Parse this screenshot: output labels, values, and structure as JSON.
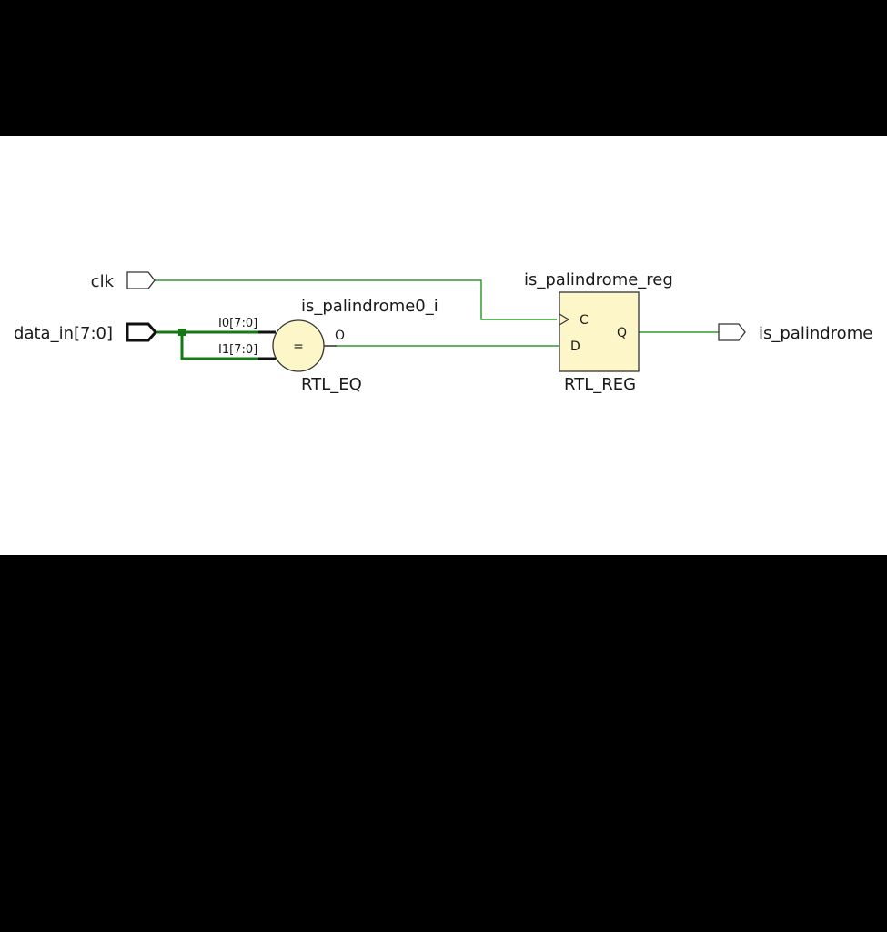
{
  "schematic": {
    "ports": {
      "clk": "clk",
      "data_in": "data_in[7:0]",
      "is_palindrome": "is_palindrome"
    },
    "comparator": {
      "instance_name": "is_palindrome0_i",
      "cell_type": "RTL_EQ",
      "symbol": "=",
      "input0": "I0[7:0]",
      "input1": "I1[7:0]",
      "output": "O"
    },
    "register": {
      "instance_name": "is_palindrome_reg",
      "cell_type": "RTL_REG",
      "pin_clock": "C",
      "pin_data": "D",
      "pin_q": "Q"
    }
  },
  "colors": {
    "wire": "#2e9a2e",
    "bus": "#157a15",
    "cell_fill": "#fcf6c8",
    "outline": "#333333"
  }
}
